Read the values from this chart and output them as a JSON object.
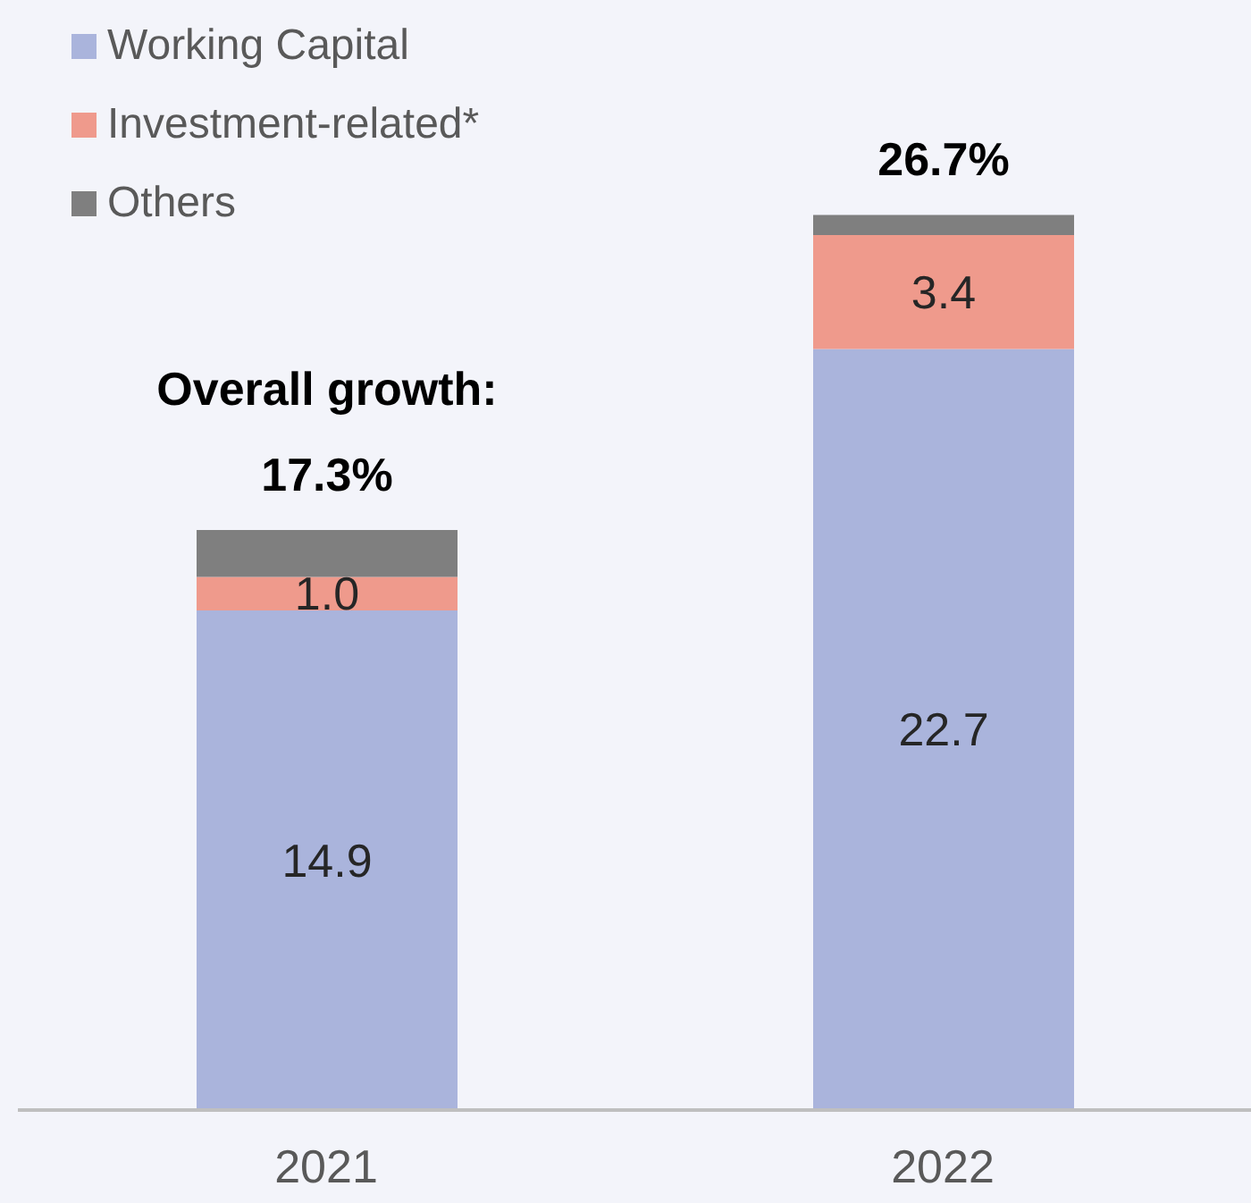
{
  "chart_data": {
    "type": "bar",
    "stacked": true,
    "categories": [
      "2021",
      "2022"
    ],
    "series": [
      {
        "name": "Working Capital",
        "color": "#aab4dc",
        "values": [
          14.9,
          22.7
        ],
        "value_labels": [
          "14.9",
          "22.7"
        ]
      },
      {
        "name": "Investment-related*",
        "color": "#ef9a8c",
        "values": [
          1.0,
          3.4
        ],
        "value_labels": [
          "1.0",
          "3.4"
        ]
      },
      {
        "name": "Others",
        "color": "#7f7f7f",
        "values": [
          1.4,
          0.6
        ]
      }
    ],
    "totals": [
      "17.3%",
      "26.7%"
    ],
    "annotations": [
      "Overall growth:"
    ],
    "legend": "top left"
  }
}
